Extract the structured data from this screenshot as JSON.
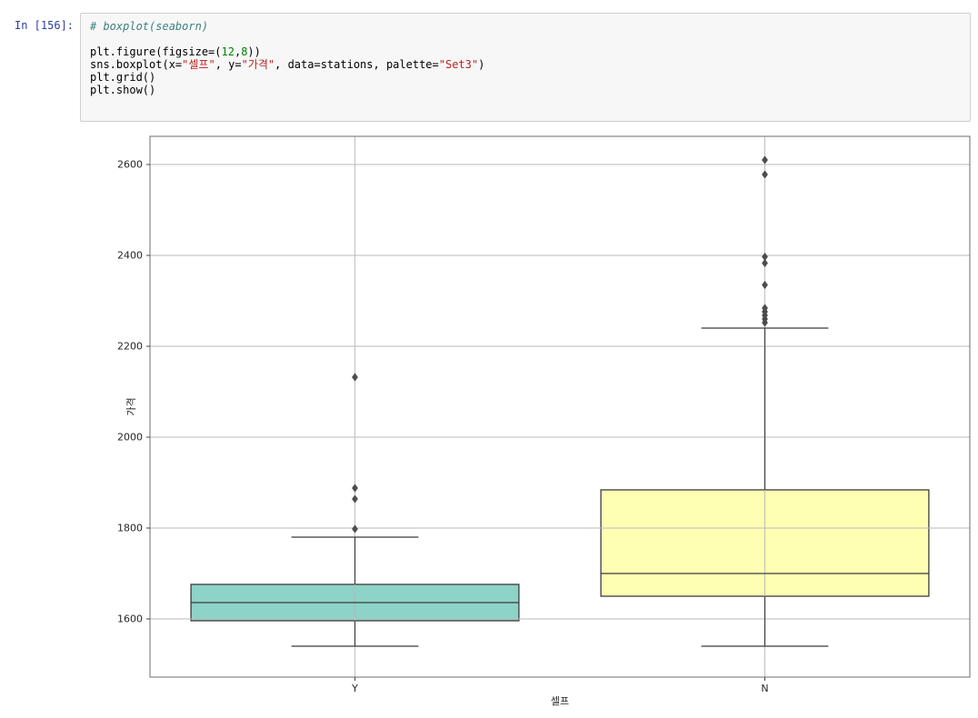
{
  "notebook": {
    "prompt": "In [156]:",
    "code_lines": [
      [
        {
          "t": "# boxplot(seaborn)",
          "c": "comment"
        }
      ],
      [],
      [
        {
          "t": "plt.figure(figsize=(",
          "c": "plain"
        },
        {
          "t": "12",
          "c": "num"
        },
        {
          "t": ",",
          "c": "plain"
        },
        {
          "t": "8",
          "c": "num"
        },
        {
          "t": "))",
          "c": "plain"
        }
      ],
      [
        {
          "t": "sns.boxplot(x=",
          "c": "plain"
        },
        {
          "t": "\"셀프\"",
          "c": "str"
        },
        {
          "t": ", y=",
          "c": "plain"
        },
        {
          "t": "\"가격\"",
          "c": "str"
        },
        {
          "t": ", data=stations, palette=",
          "c": "plain"
        },
        {
          "t": "\"Set3\"",
          "c": "str"
        },
        {
          "t": ")",
          "c": "plain"
        }
      ],
      [
        {
          "t": "plt.grid()",
          "c": "plain"
        }
      ],
      [
        {
          "t": "plt.show()",
          "c": "plain"
        }
      ]
    ]
  },
  "chart_data": {
    "type": "boxplot",
    "title": "",
    "xlabel": "셀프",
    "ylabel": "가격",
    "categories": [
      "Y",
      "N"
    ],
    "yticks": [
      1600,
      1800,
      2000,
      2200,
      2400,
      2600
    ],
    "ylim": [
      1472,
      2662
    ],
    "grid": true,
    "palette": [
      "#8dd3c7",
      "#ffffb3"
    ],
    "box_edge_color": "#3b3b3b",
    "flier_color": "#4d4d4d",
    "series": [
      {
        "category": "Y",
        "whisker_low": 1540,
        "q1": 1596,
        "median": 1636,
        "q3": 1676,
        "whisker_high": 1780,
        "outliers": [
          1798,
          1864,
          1888,
          2132
        ]
      },
      {
        "category": "N",
        "whisker_low": 1540,
        "q1": 1650,
        "median": 1700,
        "q3": 1884,
        "whisker_high": 2240,
        "outliers": [
          2252,
          2260,
          2268,
          2276,
          2284,
          2335,
          2383,
          2397,
          2578,
          2610
        ]
      }
    ]
  }
}
